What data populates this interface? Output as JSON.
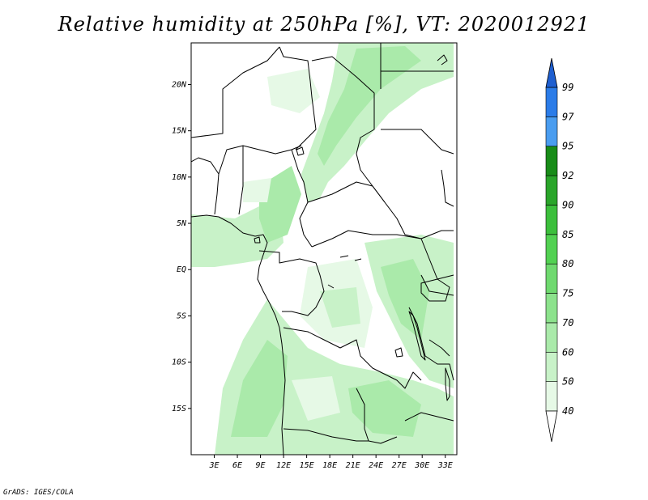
{
  "title": "Relative humidity at 250hPa [%], VT: 2020012921",
  "credit": "GrADS: IGES/COLA",
  "map": {
    "lon_range": [
      0,
      34.5
    ],
    "lat_range": [
      -20,
      24.5
    ],
    "lat_ticks": [
      {
        "value": 20,
        "label": "20N"
      },
      {
        "value": 15,
        "label": "15N"
      },
      {
        "value": 10,
        "label": "10N"
      },
      {
        "value": 5,
        "label": "5N"
      },
      {
        "value": 0,
        "label": "EQ"
      },
      {
        "value": -5,
        "label": "5S"
      },
      {
        "value": -10,
        "label": "10S"
      },
      {
        "value": -15,
        "label": "15S"
      }
    ],
    "lon_ticks": [
      {
        "value": 3,
        "label": "3E"
      },
      {
        "value": 6,
        "label": "6E"
      },
      {
        "value": 9,
        "label": "9E"
      },
      {
        "value": 12,
        "label": "12E"
      },
      {
        "value": 15,
        "label": "15E"
      },
      {
        "value": 18,
        "label": "18E"
      },
      {
        "value": 21,
        "label": "21E"
      },
      {
        "value": 24,
        "label": "24E"
      },
      {
        "value": 27,
        "label": "27E"
      },
      {
        "value": 30,
        "label": "30E"
      },
      {
        "value": 33,
        "label": "33E"
      }
    ]
  },
  "colorbar": {
    "levels": [
      {
        "label": "40",
        "color": "#ffffff"
      },
      {
        "label": "50",
        "color": "#e6f9e6"
      },
      {
        "label": "60",
        "color": "#c8f2c8"
      },
      {
        "label": "70",
        "color": "#aaeaaa"
      },
      {
        "label": "75",
        "color": "#8ce28c"
      },
      {
        "label": "80",
        "color": "#6fd96f"
      },
      {
        "label": "85",
        "color": "#52d152"
      },
      {
        "label": "90",
        "color": "#3cbf3c"
      },
      {
        "label": "92",
        "color": "#2aa52a"
      },
      {
        "label": "95",
        "color": "#188c18"
      },
      {
        "label": "97",
        "color": "#4a9df0"
      },
      {
        "label": "99",
        "color": "#2b7ce8"
      }
    ],
    "top_color": "#1f5fd0",
    "bottom_color": "#ffffff"
  }
}
